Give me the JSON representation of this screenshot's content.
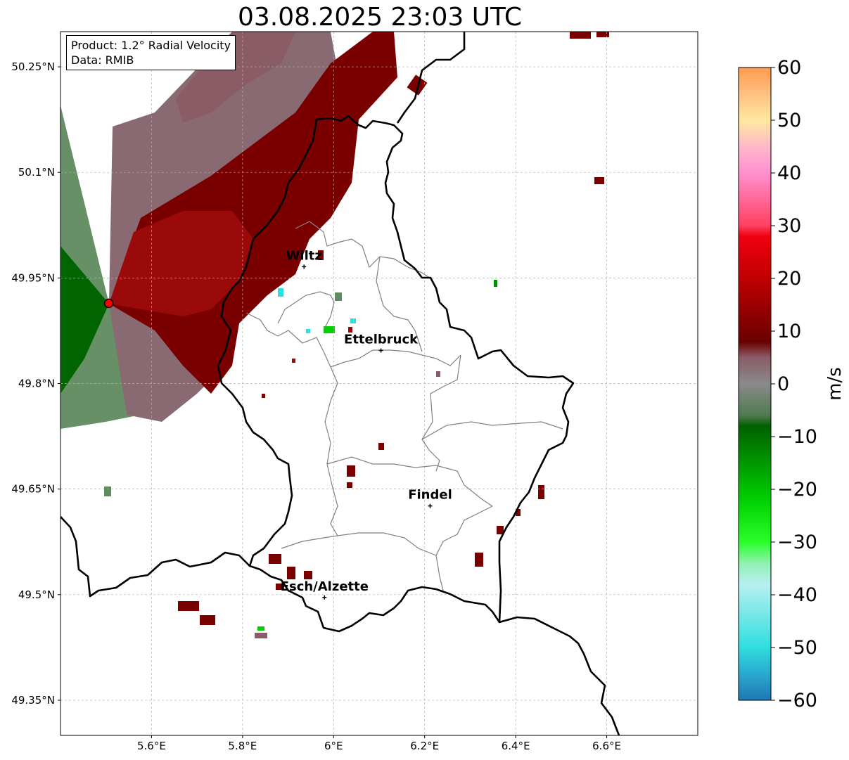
{
  "title": "03.08.2025 23:03 UTC",
  "info_box": {
    "product": "Product: 1.2° Radial Velocity",
    "data": "Data: RMIB"
  },
  "map": {
    "lon_range": [
      5.4,
      6.8
    ],
    "lat_range": [
      49.3,
      50.3
    ],
    "grid": true,
    "lat_ticks": [
      {
        "value": 50.25,
        "label": "50.25°N"
      },
      {
        "value": 50.1,
        "label": "50.1°N"
      },
      {
        "value": 49.95,
        "label": "49.95°N"
      },
      {
        "value": 49.8,
        "label": "49.8°N"
      },
      {
        "value": 49.65,
        "label": "49.65°N"
      },
      {
        "value": 49.5,
        "label": "49.5°N"
      },
      {
        "value": 49.35,
        "label": "49.35°N"
      }
    ],
    "lon_ticks": [
      {
        "value": 5.6,
        "label": "5.6°E"
      },
      {
        "value": 5.8,
        "label": "5.8°E"
      },
      {
        "value": 6.0,
        "label": "6°E"
      },
      {
        "value": 6.2,
        "label": "6.2°E"
      },
      {
        "value": 6.4,
        "label": "6.4°E"
      },
      {
        "value": 6.6,
        "label": "6.6°E"
      }
    ],
    "radar_site": {
      "lon": 5.506,
      "lat": 49.914
    },
    "cities": [
      {
        "name": "Wiltz",
        "lon": 5.935,
        "lat": 49.966
      },
      {
        "name": "Ettelbruck",
        "lon": 6.104,
        "lat": 49.847
      },
      {
        "name": "Findel",
        "lon": 6.212,
        "lat": 49.626
      },
      {
        "name": "Esch/Alzette",
        "lon": 5.98,
        "lat": 49.496
      }
    ]
  },
  "colorbar": {
    "label": "m/s",
    "min": -60,
    "max": 60,
    "ticks": [
      {
        "value": 60,
        "label": "60"
      },
      {
        "value": 50,
        "label": "50"
      },
      {
        "value": 40,
        "label": "40"
      },
      {
        "value": 30,
        "label": "30"
      },
      {
        "value": 20,
        "label": "20"
      },
      {
        "value": 10,
        "label": "10"
      },
      {
        "value": 0,
        "label": "0"
      },
      {
        "value": -10,
        "label": "−10"
      },
      {
        "value": -20,
        "label": "−20"
      },
      {
        "value": -30,
        "label": "−30"
      },
      {
        "value": -40,
        "label": "−40"
      },
      {
        "value": -50,
        "label": "−50"
      },
      {
        "value": -60,
        "label": "−60"
      }
    ],
    "color_stops": [
      {
        "value": -60,
        "color": "#1f77b4"
      },
      {
        "value": -55,
        "color": "#2aa9cf"
      },
      {
        "value": -50,
        "color": "#2fdedf"
      },
      {
        "value": -43,
        "color": "#7fe8e8"
      },
      {
        "value": -38,
        "color": "#b8f0f0"
      },
      {
        "value": -34,
        "color": "#90f0b0"
      },
      {
        "value": -30,
        "color": "#2aff2a"
      },
      {
        "value": -22,
        "color": "#00d000"
      },
      {
        "value": -14,
        "color": "#009000"
      },
      {
        "value": -8,
        "color": "#005f00"
      },
      {
        "value": -6,
        "color": "#4f7a4f"
      },
      {
        "value": 0,
        "color": "#8a8a8a"
      },
      {
        "value": 5,
        "color": "#8a5c66"
      },
      {
        "value": 8,
        "color": "#6a0000"
      },
      {
        "value": 20,
        "color": "#c00000"
      },
      {
        "value": 28,
        "color": "#f00010"
      },
      {
        "value": 30,
        "color": "#ff4060"
      },
      {
        "value": 40,
        "color": "#ff90d0"
      },
      {
        "value": 45,
        "color": "#ffb8c8"
      },
      {
        "value": 50,
        "color": "#ffe8a0"
      },
      {
        "value": 55,
        "color": "#ffc080"
      },
      {
        "value": 60,
        "color": "#ff9a50"
      }
    ]
  },
  "colors": {
    "inbound_dark": "#006400",
    "inbound_gray": "#5f8a5f",
    "outbound_dark": "#7a0000",
    "outbound_mid": "#9a0a0a",
    "outbound_gray": "#8a6a72",
    "border": "#000000",
    "canton": "#808080",
    "site_marker": "#ff0000"
  }
}
